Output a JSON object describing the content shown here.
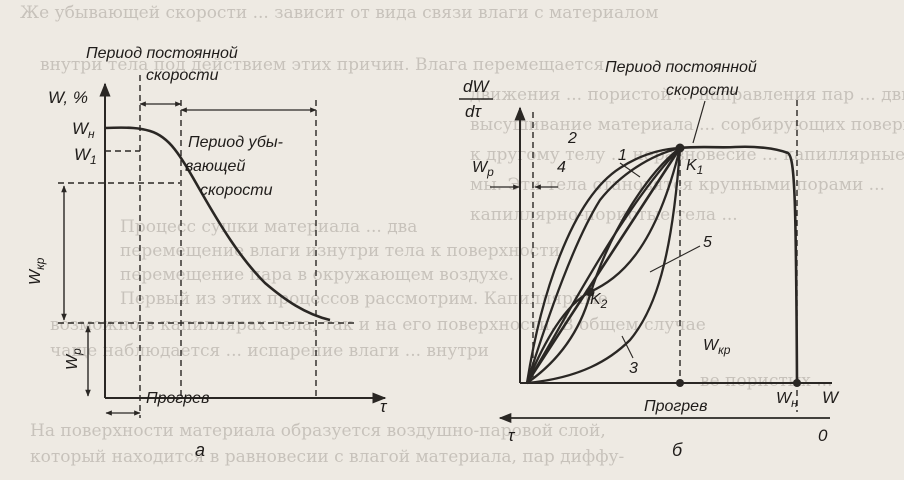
{
  "background_text_lines": [
    "Же убывающей скорости ... зависит от вида связи влаги с материалом",
    "внутри тела под действием этих причин. Влага перемещается",
    "движения ... пористой ... направления пар ... движение",
    "высушивание материала ... сорбирующих поверхностях",
    "к другому телу ... неравновесие ... капиллярные",
    "мы. Эти тела становятся крупными порами ...",
    "капиллярно-пористые тела ...",
    "Процесс сушки материала ... два",
    "перемещение влаги изнутри тела к поверхности",
    "перемещение пара в окружающем воздухе.",
    "Первый из этих процессов рассмотрим. Капиллярные",
    "возможно в капиллярах тела, так и на его поверхности. В общем случае",
    "чаще наблюдается ... испарение влаги ... внутри",
    "ве пористых ... ",
    "На поверхности материала образуется воздушно-паровой слой,",
    "который находится в равновесии с влагой материала, пар диффу-"
  ],
  "left_graph": {
    "y_axis_label": "W, %",
    "x_axis_label": "τ",
    "label_w_initial": "W",
    "label_w_initial_sub": "н",
    "label_w1": "W",
    "label_w1_sub": "1",
    "label_w_critical": "W",
    "label_w_critical_sub": "кр",
    "label_w_equilibrium": "W",
    "label_w_equilibrium_sub": "р",
    "period_constant_line1": "Период постоянной",
    "period_constant_line2": "скорости",
    "period_falling_line1": "Период убы-",
    "period_falling_line2": "вающей",
    "period_falling_line3": "скорости",
    "warmup_label": "Прогрев",
    "panel_letter": "а"
  },
  "right_graph": {
    "y_axis_label_top": "dW",
    "y_axis_label_bottom": "dτ",
    "period_constant_line1": "Период постоянной",
    "period_constant_line2": "скорости",
    "curve_numbers": [
      "1",
      "2",
      "3",
      "4",
      "5"
    ],
    "point_k1": "K",
    "point_k1_sub": "1",
    "point_k2": "K",
    "point_k2_sub": "2",
    "label_w_equilibrium": "W",
    "label_w_equilibrium_sub": "р",
    "label_w_critical": "W",
    "label_w_critical_sub": "кр",
    "warmup_label": "Прогрев",
    "label_w_initial": "W",
    "label_w_initial_sub": "н",
    "x_axis_label": "W",
    "bottom_axis_tau": "τ",
    "bottom_axis_zero": "0",
    "panel_letter": "б"
  }
}
